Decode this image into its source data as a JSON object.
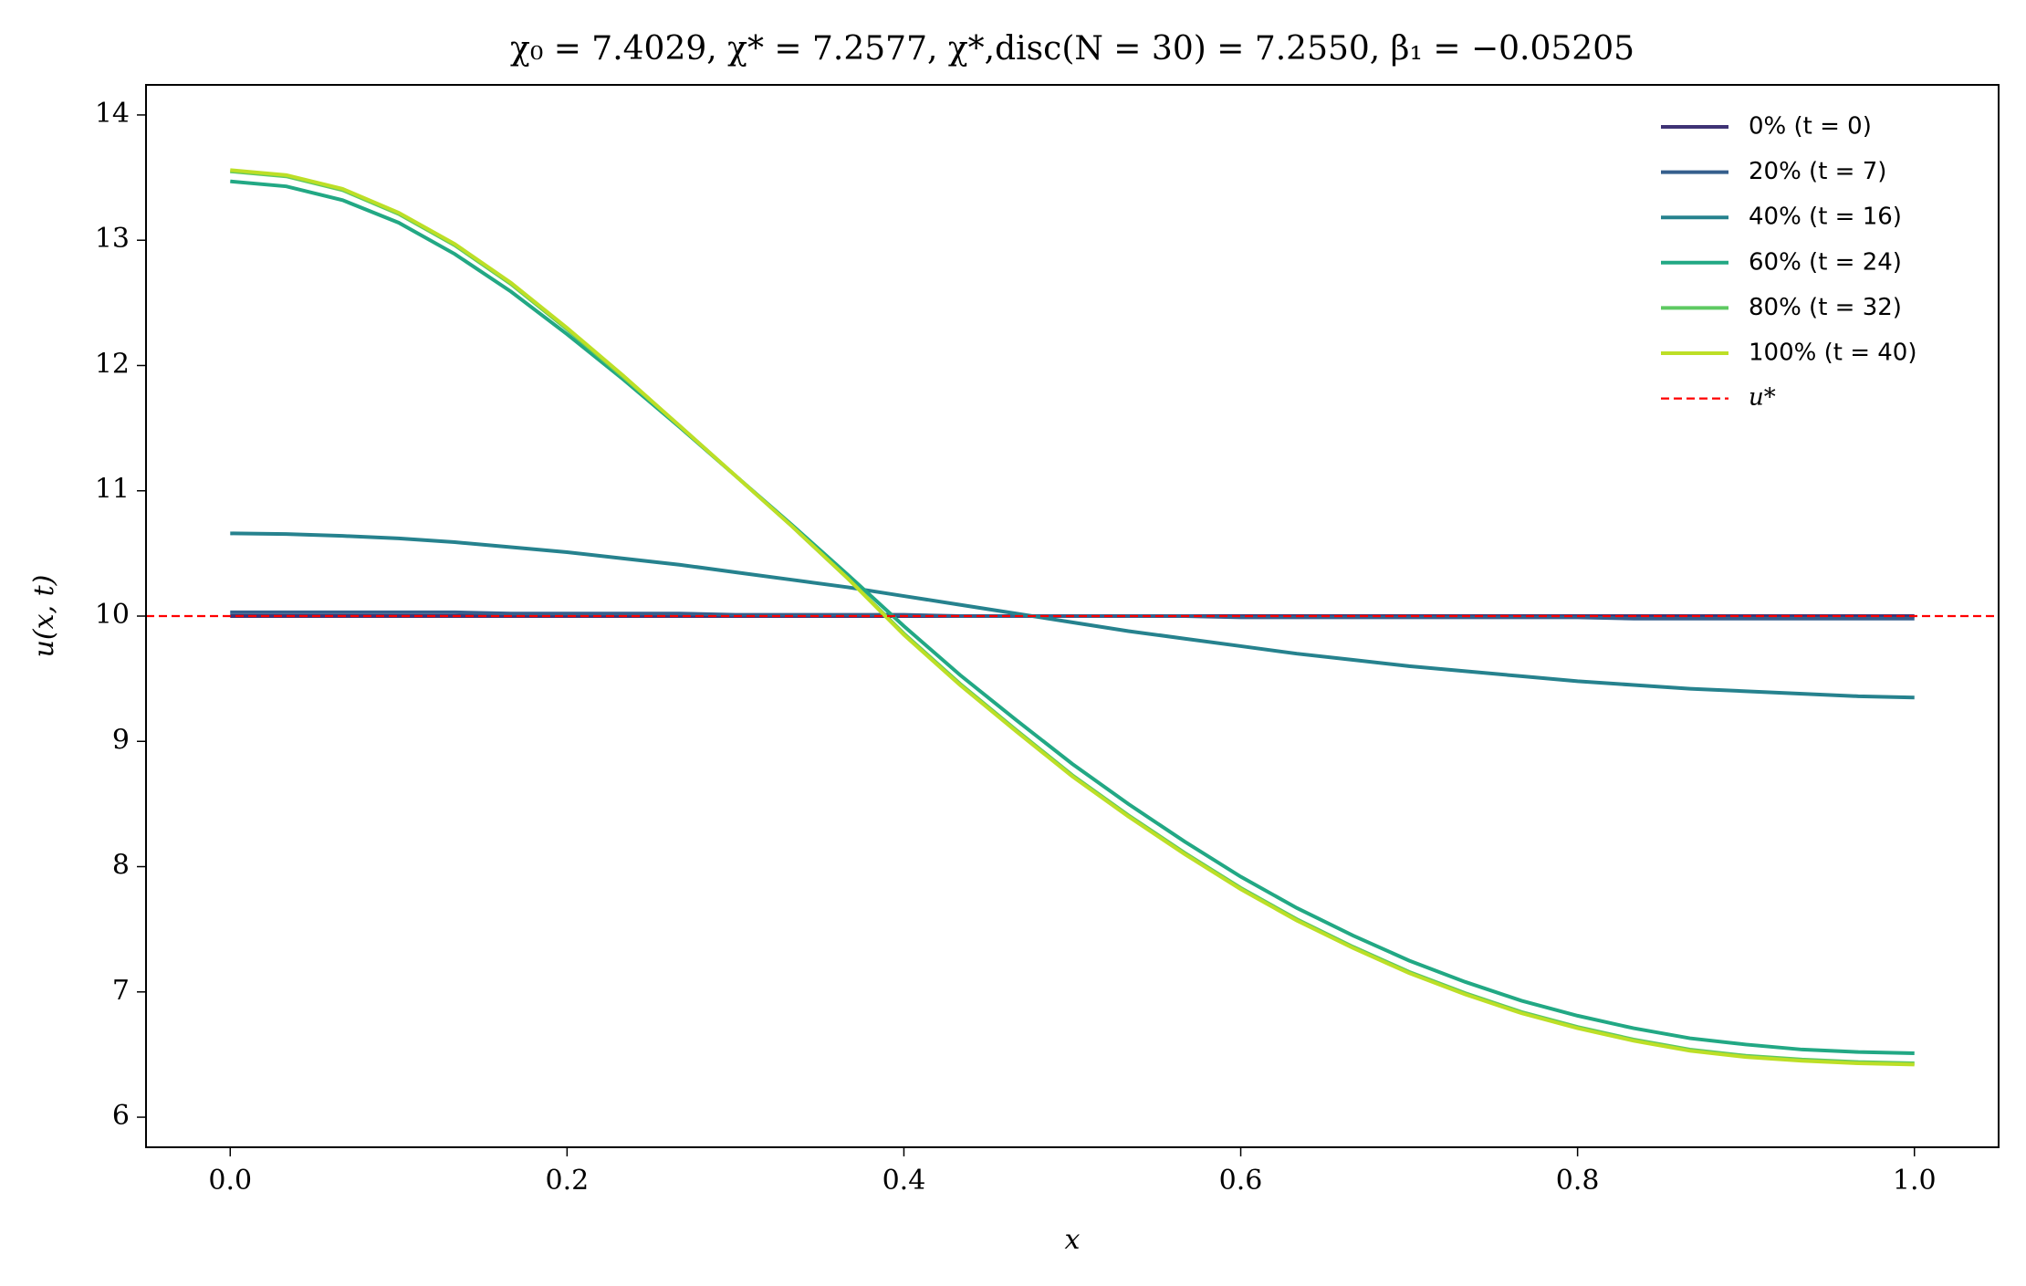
{
  "chart_data": {
    "type": "line",
    "title": "χ₀ = 7.4029,  χ* = 7.2577,  χ*,disc(N = 30) = 7.2550,  β₁ = −0.05205",
    "x_label": "x",
    "y_label": "u(x, t)",
    "x": [
      0,
      0.0333,
      0.0667,
      0.1,
      0.1333,
      0.1667,
      0.2,
      0.2333,
      0.2667,
      0.3,
      0.3333,
      0.3667,
      0.4,
      0.4333,
      0.4667,
      0.5,
      0.5333,
      0.5667,
      0.6,
      0.6333,
      0.6667,
      0.7,
      0.7333,
      0.7667,
      0.8,
      0.8333,
      0.8667,
      0.9,
      0.9333,
      0.9667,
      1
    ],
    "series": [
      {
        "name": "0% (t = 0)",
        "color": "#3f3375",
        "values": [
          10,
          10,
          10,
          10,
          10,
          10,
          10,
          10,
          10,
          10,
          10,
          10,
          10,
          10,
          10,
          10,
          10,
          10,
          10,
          10,
          10,
          10,
          10,
          10,
          10,
          10,
          10,
          10,
          10,
          10,
          10
        ]
      },
      {
        "name": "20% (t = 7)",
        "color": "#355f8d",
        "values": [
          10.03,
          10.03,
          10.03,
          10.03,
          10.03,
          10.02,
          10.02,
          10.02,
          10.02,
          10.01,
          10.01,
          10.01,
          10.01,
          10.0,
          10.0,
          10.0,
          10.0,
          10.0,
          9.99,
          9.99,
          9.99,
          9.99,
          9.99,
          9.99,
          9.99,
          9.98,
          9.98,
          9.98,
          9.98,
          9.98,
          9.98
        ]
      },
      {
        "name": "40% (t = 16)",
        "color": "#26828e",
        "values": [
          10.66,
          10.655,
          10.64,
          10.62,
          10.59,
          10.55,
          10.51,
          10.46,
          10.41,
          10.35,
          10.29,
          10.23,
          10.16,
          10.09,
          10.02,
          9.95,
          9.88,
          9.82,
          9.76,
          9.7,
          9.65,
          9.6,
          9.56,
          9.52,
          9.48,
          9.45,
          9.42,
          9.4,
          9.38,
          9.36,
          9.35
        ]
      },
      {
        "name": "60% (t = 24)",
        "color": "#22a884",
        "values": [
          13.47,
          13.43,
          13.32,
          13.14,
          12.89,
          12.59,
          12.25,
          11.89,
          11.51,
          11.12,
          10.73,
          10.33,
          9.92,
          9.53,
          9.17,
          8.82,
          8.5,
          8.2,
          7.92,
          7.67,
          7.45,
          7.25,
          7.08,
          6.93,
          6.81,
          6.71,
          6.63,
          6.58,
          6.54,
          6.52,
          6.51
        ]
      },
      {
        "name": "80% (t = 32)",
        "color": "#5ec962",
        "values": [
          13.55,
          13.51,
          13.4,
          13.21,
          12.96,
          12.65,
          12.29,
          11.91,
          11.52,
          11.12,
          10.72,
          10.3,
          9.86,
          9.46,
          9.09,
          8.73,
          8.41,
          8.11,
          7.83,
          7.58,
          7.36,
          7.16,
          6.99,
          6.84,
          6.72,
          6.62,
          6.54,
          6.49,
          6.46,
          6.44,
          6.43
        ]
      },
      {
        "name": "100% (t = 40)",
        "color": "#bddf26",
        "values": [
          13.56,
          13.52,
          13.41,
          13.22,
          12.97,
          12.66,
          12.3,
          11.92,
          11.52,
          11.12,
          10.72,
          10.3,
          9.85,
          9.45,
          9.08,
          8.72,
          8.4,
          8.1,
          7.82,
          7.57,
          7.35,
          7.15,
          6.98,
          6.83,
          6.71,
          6.61,
          6.53,
          6.48,
          6.45,
          6.43,
          6.42
        ]
      }
    ],
    "hline": {
      "value": 10,
      "label": "u*",
      "color": "#ff0000"
    },
    "xlim": [
      -0.05,
      1.05
    ],
    "ylim": [
      5.76,
      14.24
    ],
    "xticks": [
      {
        "value": 0,
        "label": "0.0"
      },
      0.2,
      0.4,
      0.6,
      0.8,
      {
        "value": 1,
        "label": "1.0"
      }
    ],
    "yticks": [
      6,
      7,
      8,
      9,
      10,
      11,
      12,
      13,
      14
    ],
    "grid": false,
    "legend": "upper right"
  }
}
